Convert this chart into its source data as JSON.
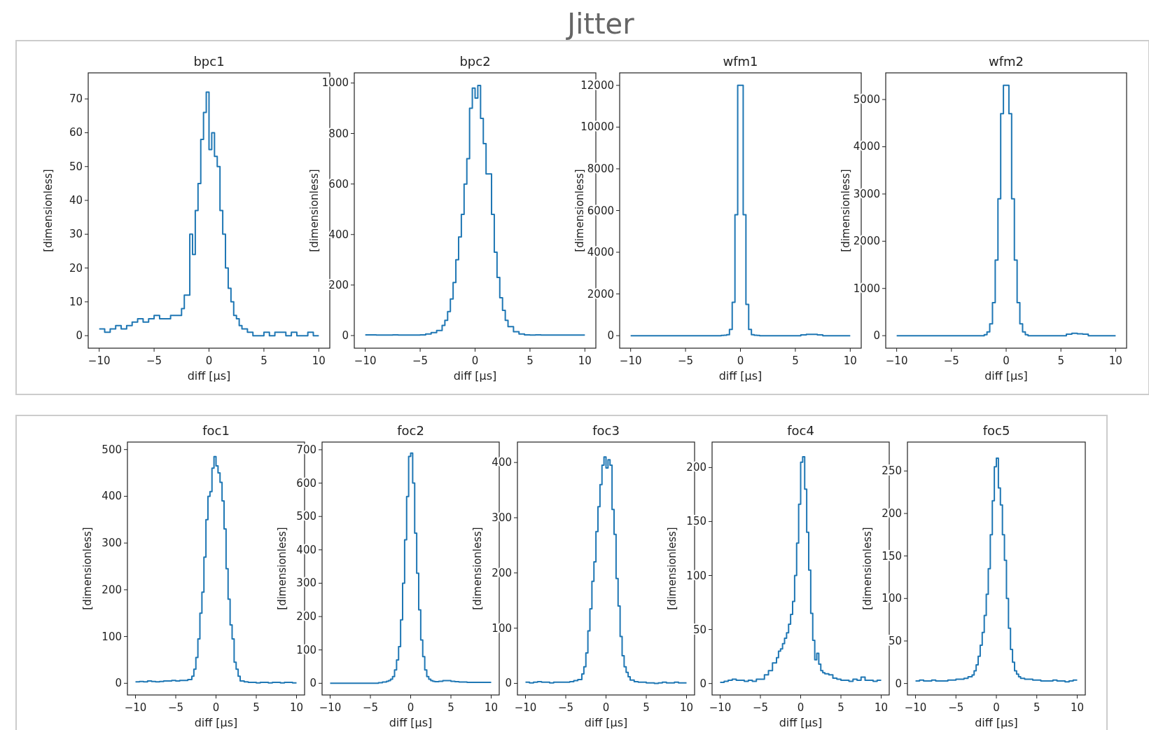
{
  "chart_data": [
    {
      "type": "other",
      "title": "Jitter"
    },
    {
      "type": "histogram",
      "title": "bpc1",
      "xlabel": "diff [μs]",
      "ylabel": "[dimensionless]",
      "color": "#1f77b4",
      "xlim": [
        -11,
        11
      ],
      "xticks": [
        -10,
        -5,
        0,
        5,
        10
      ],
      "ylim": [
        -3.7,
        77.7
      ],
      "yticks": [
        0,
        10,
        20,
        30,
        40,
        50,
        60,
        70
      ],
      "bins": [
        -10,
        -9.5,
        -9,
        -8.5,
        -8,
        -7.5,
        -7,
        -6.5,
        -6,
        -5.5,
        -5,
        -4.5,
        -4,
        -3.5,
        -3,
        -2.75,
        -2.5,
        -2.25,
        -2,
        -1.75,
        -1.5,
        -1.25,
        -1,
        -0.75,
        -0.5,
        -0.25,
        0,
        0.25,
        0.5,
        0.75,
        1,
        1.25,
        1.5,
        1.75,
        2,
        2.25,
        2.5,
        2.75,
        3,
        3.5,
        4,
        4.5,
        5,
        5.5,
        6,
        6.5,
        7,
        7.5,
        8,
        8.5,
        9,
        9.5,
        10
      ],
      "values": [
        2,
        1,
        2,
        3,
        2,
        3,
        4,
        5,
        4,
        5,
        6,
        5,
        5,
        6,
        6,
        6,
        8,
        12,
        12,
        30,
        24,
        37,
        45,
        58,
        66,
        72,
        55,
        60,
        53,
        50,
        37,
        30,
        20,
        14,
        10,
        6,
        5,
        3,
        2,
        1,
        0,
        0,
        1,
        0,
        1,
        1,
        0,
        1,
        0,
        0,
        1,
        0
      ]
    },
    {
      "type": "histogram",
      "title": "bpc2",
      "xlabel": "diff [μs]",
      "ylabel": "[dimensionless]",
      "color": "#1f77b4",
      "xlim": [
        -11,
        11
      ],
      "xticks": [
        -10,
        -5,
        0,
        5,
        10
      ],
      "ylim": [
        -50,
        1040
      ],
      "yticks": [
        0,
        200,
        400,
        600,
        800,
        1000
      ],
      "bins": [
        -10,
        -9.5,
        -9,
        -8.5,
        -8,
        -7.5,
        -7,
        -6.5,
        -6,
        -5.5,
        -5,
        -4.5,
        -4,
        -3.5,
        -3,
        -2.75,
        -2.5,
        -2.25,
        -2,
        -1.75,
        -1.5,
        -1.25,
        -1,
        -0.75,
        -0.5,
        -0.25,
        0,
        0.25,
        0.5,
        0.75,
        1,
        1.25,
        1.5,
        1.75,
        2,
        2.25,
        2.5,
        2.75,
        3,
        3.5,
        4,
        4.5,
        5,
        5.5,
        6,
        6.5,
        7,
        7.5,
        8,
        8.5,
        9,
        9.5,
        10
      ],
      "values": [
        3,
        3,
        2,
        2,
        2,
        3,
        2,
        2,
        2,
        2,
        3,
        6,
        12,
        20,
        40,
        60,
        95,
        145,
        210,
        300,
        390,
        480,
        600,
        700,
        900,
        980,
        940,
        990,
        860,
        760,
        640,
        640,
        480,
        330,
        230,
        150,
        100,
        60,
        35,
        15,
        6,
        3,
        2,
        3,
        2,
        2,
        2,
        2,
        2,
        2,
        2,
        2
      ]
    },
    {
      "type": "histogram",
      "title": "wfm1",
      "xlabel": "diff [μs]",
      "ylabel": "[dimensionless]",
      "color": "#1f77b4",
      "xlim": [
        -11,
        11
      ],
      "xticks": [
        -10,
        -5,
        0,
        5,
        10
      ],
      "ylim": [
        -600,
        12600
      ],
      "yticks": [
        0,
        2000,
        4000,
        6000,
        8000,
        10000,
        12000
      ],
      "bins": [
        -10,
        -9.5,
        -9,
        -8.5,
        -8,
        -7.5,
        -7,
        -6.5,
        -6,
        -5.5,
        -5,
        -4.5,
        -4,
        -3.5,
        -3,
        -2.75,
        -2.5,
        -2.25,
        -2,
        -1.75,
        -1.5,
        -1.25,
        -1,
        -0.75,
        -0.5,
        -0.25,
        0,
        0.25,
        0.5,
        0.75,
        1,
        1.25,
        1.5,
        1.75,
        2,
        2.25,
        2.5,
        2.75,
        3,
        3.5,
        4,
        4.5,
        5,
        5.5,
        6,
        6.5,
        7,
        7.5,
        8,
        8.5,
        9,
        9.5,
        10
      ],
      "values": [
        0,
        0,
        0,
        0,
        0,
        0,
        0,
        0,
        0,
        0,
        0,
        0,
        0,
        0,
        0,
        0,
        0,
        0,
        0,
        10,
        20,
        50,
        300,
        1600,
        5800,
        12000,
        12000,
        5800,
        1500,
        300,
        50,
        20,
        10,
        0,
        0,
        0,
        0,
        0,
        0,
        0,
        0,
        0,
        0,
        40,
        60,
        60,
        40,
        0,
        0,
        0,
        0,
        0
      ]
    },
    {
      "type": "histogram",
      "title": "wfm2",
      "xlabel": "diff [μs]",
      "ylabel": "[dimensionless]",
      "color": "#1f77b4",
      "xlim": [
        -11,
        11
      ],
      "xticks": [
        -10,
        -5,
        0,
        5,
        10
      ],
      "ylim": [
        -265,
        5565
      ],
      "yticks": [
        0,
        1000,
        2000,
        3000,
        4000,
        5000
      ],
      "bins": [
        -10,
        -9.5,
        -9,
        -8.5,
        -8,
        -7.5,
        -7,
        -6.5,
        -6,
        -5.5,
        -5,
        -4.5,
        -4,
        -3.5,
        -3,
        -2.75,
        -2.5,
        -2.25,
        -2,
        -1.75,
        -1.5,
        -1.25,
        -1,
        -0.75,
        -0.5,
        -0.25,
        0,
        0.25,
        0.5,
        0.75,
        1,
        1.25,
        1.5,
        1.75,
        2,
        2.25,
        2.5,
        2.75,
        3,
        3.5,
        4,
        4.5,
        5,
        5.5,
        6,
        6.5,
        7,
        7.5,
        8,
        8.5,
        9,
        9.5,
        10
      ],
      "values": [
        0,
        0,
        0,
        0,
        0,
        0,
        0,
        0,
        0,
        0,
        0,
        0,
        0,
        0,
        0,
        0,
        0,
        0,
        20,
        80,
        250,
        700,
        1600,
        2900,
        4700,
        5300,
        5300,
        4700,
        2900,
        1600,
        700,
        250,
        80,
        20,
        0,
        0,
        0,
        0,
        0,
        0,
        0,
        0,
        0,
        30,
        50,
        40,
        30,
        0,
        0,
        0,
        0,
        0
      ]
    },
    {
      "type": "histogram",
      "title": "foc1",
      "xlabel": "diff [μs]",
      "ylabel": "[dimensionless]",
      "color": "#1f77b4",
      "xlim": [
        -11,
        11
      ],
      "xticks": [
        -10,
        -5,
        0,
        5,
        10
      ],
      "ylim": [
        -25,
        516
      ],
      "yticks": [
        0,
        100,
        200,
        300,
        400,
        500
      ],
      "bins": [
        -10,
        -9.5,
        -9,
        -8.5,
        -8,
        -7.5,
        -7,
        -6.5,
        -6,
        -5.5,
        -5,
        -4.5,
        -4,
        -3.5,
        -3,
        -2.75,
        -2.5,
        -2.25,
        -2,
        -1.75,
        -1.5,
        -1.25,
        -1,
        -0.75,
        -0.5,
        -0.25,
        0,
        0.25,
        0.5,
        0.75,
        1,
        1.25,
        1.5,
        1.75,
        2,
        2.25,
        2.5,
        2.75,
        3,
        3.5,
        4,
        4.5,
        5,
        5.5,
        6,
        6.5,
        7,
        7.5,
        8,
        8.5,
        9,
        9.5,
        10
      ],
      "values": [
        3,
        4,
        3,
        5,
        4,
        3,
        4,
        5,
        5,
        6,
        5,
        6,
        6,
        8,
        15,
        30,
        55,
        95,
        150,
        195,
        270,
        350,
        400,
        410,
        460,
        485,
        465,
        450,
        430,
        390,
        330,
        245,
        180,
        125,
        95,
        45,
        30,
        15,
        5,
        3,
        2,
        2,
        1,
        2,
        2,
        1,
        2,
        2,
        1,
        2,
        2,
        1
      ]
    },
    {
      "type": "histogram",
      "title": "foc2",
      "xlabel": "diff [μs]",
      "ylabel": "[dimensionless]",
      "color": "#1f77b4",
      "xlim": [
        -11,
        11
      ],
      "xticks": [
        -10,
        -5,
        0,
        5,
        10
      ],
      "ylim": [
        -35,
        723
      ],
      "yticks": [
        0,
        100,
        200,
        300,
        400,
        500,
        600,
        700
      ],
      "bins": [
        -10,
        -9.5,
        -9,
        -8.5,
        -8,
        -7.5,
        -7,
        -6.5,
        -6,
        -5.5,
        -5,
        -4.5,
        -4,
        -3.5,
        -3,
        -2.75,
        -2.5,
        -2.25,
        -2,
        -1.75,
        -1.5,
        -1.25,
        -1,
        -0.75,
        -0.5,
        -0.25,
        0,
        0.25,
        0.5,
        0.75,
        1,
        1.25,
        1.5,
        1.75,
        2,
        2.25,
        2.5,
        2.75,
        3,
        3.5,
        4,
        4.5,
        5,
        5.5,
        6,
        6.5,
        7,
        7.5,
        8,
        8.5,
        9,
        9.5,
        10
      ],
      "values": [
        0,
        0,
        0,
        0,
        0,
        0,
        0,
        0,
        0,
        0,
        0,
        0,
        2,
        4,
        6,
        8,
        12,
        20,
        40,
        70,
        110,
        190,
        300,
        430,
        560,
        680,
        690,
        600,
        450,
        330,
        220,
        130,
        80,
        40,
        20,
        12,
        8,
        6,
        5,
        6,
        8,
        8,
        6,
        5,
        4,
        4,
        3,
        3,
        3,
        3,
        3,
        3
      ]
    },
    {
      "type": "histogram",
      "title": "foc3",
      "xlabel": "diff [μs]",
      "ylabel": "[dimensionless]",
      "color": "#1f77b4",
      "xlim": [
        -11,
        11
      ],
      "xticks": [
        -10,
        -5,
        0,
        5,
        10
      ],
      "ylim": [
        -21,
        437
      ],
      "yticks": [
        0,
        100,
        200,
        300,
        400
      ],
      "bins": [
        -10,
        -9.5,
        -9,
        -8.5,
        -8,
        -7.5,
        -7,
        -6.5,
        -6,
        -5.5,
        -5,
        -4.5,
        -4,
        -3.5,
        -3,
        -2.75,
        -2.5,
        -2.25,
        -2,
        -1.75,
        -1.5,
        -1.25,
        -1,
        -0.75,
        -0.5,
        -0.25,
        0,
        0.25,
        0.5,
        0.75,
        1,
        1.25,
        1.5,
        1.75,
        2,
        2.25,
        2.5,
        2.75,
        3,
        3.5,
        4,
        4.5,
        5,
        5.5,
        6,
        6.5,
        7,
        7.5,
        8,
        8.5,
        9,
        9.5,
        10
      ],
      "values": [
        2,
        1,
        2,
        3,
        2,
        2,
        1,
        2,
        2,
        2,
        2,
        3,
        5,
        7,
        17,
        30,
        55,
        95,
        135,
        185,
        220,
        275,
        320,
        360,
        395,
        410,
        390,
        405,
        395,
        315,
        270,
        190,
        140,
        85,
        50,
        30,
        20,
        12,
        6,
        3,
        2,
        2,
        1,
        1,
        0,
        1,
        2,
        1,
        1,
        2,
        1,
        1
      ]
    },
    {
      "type": "histogram",
      "title": "foc4",
      "xlabel": "diff [μs]",
      "ylabel": "[dimensionless]",
      "color": "#1f77b4",
      "xlim": [
        -11,
        11
      ],
      "xticks": [
        -10,
        -5,
        0,
        5,
        10
      ],
      "ylim": [
        -10.6,
        223.6
      ],
      "yticks": [
        0,
        50,
        100,
        150,
        200
      ],
      "bins": [
        -10,
        -9.5,
        -9,
        -8.5,
        -8,
        -7.5,
        -7,
        -6.5,
        -6,
        -5.5,
        -5,
        -4.5,
        -4,
        -3.5,
        -3,
        -2.75,
        -2.5,
        -2.25,
        -2,
        -1.75,
        -1.5,
        -1.25,
        -1,
        -0.75,
        -0.5,
        -0.25,
        0,
        0.25,
        0.5,
        0.75,
        1,
        1.25,
        1.5,
        1.75,
        2,
        2.25,
        2.5,
        2.75,
        3,
        3.5,
        4,
        4.5,
        5,
        5.5,
        6,
        6.5,
        7,
        7.5,
        8,
        8.5,
        9,
        9.5,
        10
      ],
      "values": [
        1,
        2,
        3,
        4,
        3,
        3,
        2,
        3,
        2,
        4,
        4,
        8,
        12,
        19,
        24,
        30,
        32,
        37,
        42,
        47,
        55,
        64,
        76,
        100,
        130,
        166,
        205,
        210,
        180,
        140,
        105,
        65,
        40,
        22,
        28,
        18,
        12,
        10,
        9,
        8,
        5,
        4,
        3,
        3,
        2,
        4,
        3,
        6,
        3,
        3,
        2,
        3
      ]
    },
    {
      "type": "histogram",
      "title": "foc5",
      "xlabel": "diff [μs]",
      "ylabel": "[dimensionless]",
      "color": "#1f77b4",
      "xlim": [
        -11,
        11
      ],
      "xticks": [
        -10,
        -5,
        0,
        5,
        10
      ],
      "ylim": [
        -13.5,
        284
      ],
      "yticks": [
        0,
        50,
        100,
        150,
        200,
        250
      ],
      "bins": [
        -10,
        -9.5,
        -9,
        -8.5,
        -8,
        -7.5,
        -7,
        -6.5,
        -6,
        -5.5,
        -5,
        -4.5,
        -4,
        -3.5,
        -3,
        -2.75,
        -2.5,
        -2.25,
        -2,
        -1.75,
        -1.5,
        -1.25,
        -1,
        -0.75,
        -0.5,
        -0.25,
        0,
        0.25,
        0.5,
        0.75,
        1,
        1.25,
        1.5,
        1.75,
        2,
        2.25,
        2.5,
        2.75,
        3,
        3.5,
        4,
        4.5,
        5,
        5.5,
        6,
        6.5,
        7,
        7.5,
        8,
        8.5,
        9,
        9.5,
        10
      ],
      "values": [
        3,
        4,
        3,
        3,
        4,
        3,
        3,
        3,
        4,
        4,
        5,
        5,
        6,
        8,
        10,
        15,
        22,
        32,
        45,
        60,
        80,
        105,
        135,
        175,
        215,
        255,
        265,
        230,
        210,
        175,
        145,
        100,
        65,
        40,
        25,
        15,
        11,
        8,
        6,
        5,
        5,
        4,
        4,
        3,
        3,
        3,
        4,
        3,
        3,
        2,
        3,
        4
      ]
    }
  ]
}
